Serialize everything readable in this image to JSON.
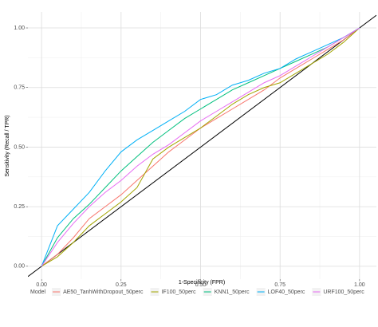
{
  "chart_data": {
    "type": "line",
    "x_label": "1-Specificity (FPR)",
    "y_label": "Sensitivity (Recall / TPR)",
    "legend_title": "Model",
    "legend_position": "bottom",
    "grid": true,
    "xlim": [
      -0.043,
      1.053
    ],
    "ylim": [
      -0.054,
      1.067
    ],
    "xticks": [
      {
        "value": 0,
        "label": "0.00"
      },
      {
        "value": 0.25,
        "label": "0.25"
      },
      {
        "value": 0.5,
        "label": "0.50"
      },
      {
        "value": 0.75,
        "label": "0.75"
      },
      {
        "value": 1,
        "label": "1.00"
      }
    ],
    "yticks": [
      {
        "value": 0,
        "label": "0.00"
      },
      {
        "value": 0.25,
        "label": "0.25"
      },
      {
        "value": 0.5,
        "label": "0.50"
      },
      {
        "value": 0.75,
        "label": "0.75"
      },
      {
        "value": 1,
        "label": "1.00"
      }
    ],
    "xminor": [
      0.125,
      0.375,
      0.625,
      0.875
    ],
    "yminor": [
      0.125,
      0.375,
      0.625,
      0.875
    ],
    "abline": {
      "intercept": 0,
      "slope": 1,
      "color": "#000000"
    },
    "x": [
      0,
      0.05,
      0.1,
      0.15,
      0.2,
      0.25,
      0.3,
      0.35,
      0.4,
      0.45,
      0.5,
      0.55,
      0.6,
      0.65,
      0.7,
      0.75,
      0.8,
      0.85,
      0.9,
      0.95,
      1
    ],
    "series": [
      {
        "name": "AE50_TanhWithDropout_50perc",
        "color": "#F8766D",
        "values": [
          0,
          0.05,
          0.12,
          0.2,
          0.25,
          0.3,
          0.36,
          0.42,
          0.48,
          0.53,
          0.58,
          0.62,
          0.66,
          0.7,
          0.74,
          0.79,
          0.83,
          0.87,
          0.91,
          0.95,
          1
        ]
      },
      {
        "name": "IF100_50perc",
        "color": "#A3A500",
        "values": [
          0,
          0.04,
          0.1,
          0.17,
          0.22,
          0.27,
          0.33,
          0.45,
          0.5,
          0.54,
          0.58,
          0.63,
          0.68,
          0.72,
          0.75,
          0.77,
          0.81,
          0.85,
          0.89,
          0.94,
          1
        ]
      },
      {
        "name": "KNN1_50perc",
        "color": "#00BF7D",
        "values": [
          0,
          0.12,
          0.2,
          0.26,
          0.33,
          0.4,
          0.46,
          0.52,
          0.57,
          0.62,
          0.66,
          0.7,
          0.74,
          0.77,
          0.8,
          0.83,
          0.86,
          0.89,
          0.92,
          0.96,
          1
        ]
      },
      {
        "name": "LOF40_50perc",
        "color": "#00B0F6",
        "values": [
          0,
          0.17,
          0.24,
          0.31,
          0.4,
          0.48,
          0.53,
          0.57,
          0.61,
          0.65,
          0.7,
          0.72,
          0.76,
          0.78,
          0.81,
          0.83,
          0.87,
          0.9,
          0.93,
          0.96,
          1
        ]
      },
      {
        "name": "URF100_50perc",
        "color": "#E76BF3",
        "values": [
          0,
          0.1,
          0.18,
          0.25,
          0.31,
          0.36,
          0.42,
          0.47,
          0.51,
          0.56,
          0.61,
          0.65,
          0.69,
          0.73,
          0.77,
          0.8,
          0.84,
          0.88,
          0.92,
          0.96,
          1
        ]
      }
    ]
  }
}
